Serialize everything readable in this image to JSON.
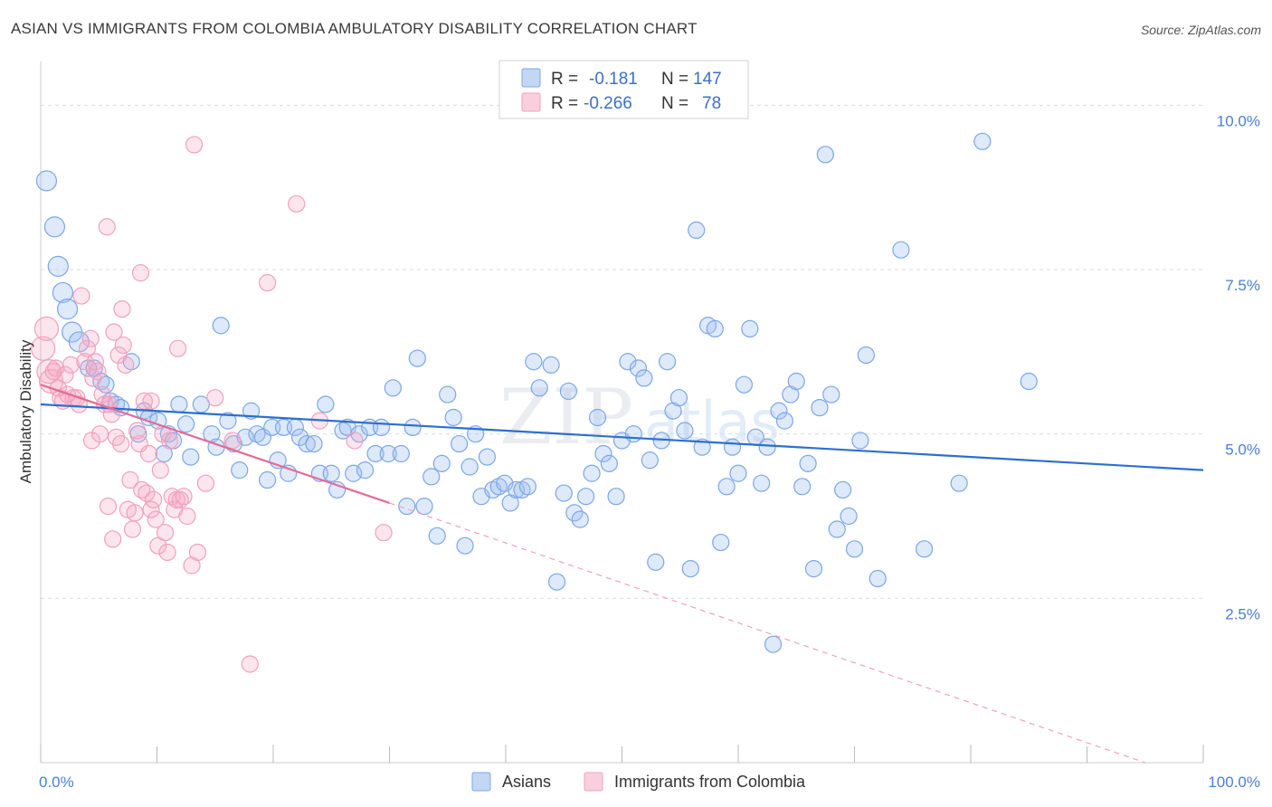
{
  "header": {
    "title": "ASIAN VS IMMIGRANTS FROM COLOMBIA AMBULATORY DISABILITY CORRELATION CHART",
    "source": "Source: ZipAtlas.com"
  },
  "watermark": {
    "zip": "ZIP",
    "atlas": "atlas"
  },
  "legend": {
    "rows": [
      {
        "r_label": "R =",
        "r_value": "-0.181",
        "n_label": "N =",
        "n_value": "147",
        "color": "#7ba7e8"
      },
      {
        "r_label": "R =",
        "r_value": "-0.266",
        "n_label": "N =",
        "n_value": "78",
        "color": "#f2a0bc"
      }
    ]
  },
  "bottom_legend": [
    {
      "label": "Asians",
      "color": "#7ba7e8"
    },
    {
      "label": "Immigrants from Colombia",
      "color": "#f2a0bc"
    }
  ],
  "chart_data": {
    "type": "scatter",
    "title": "ASIAN VS IMMIGRANTS FROM COLOMBIA AMBULATORY DISABILITY CORRELATION CHART",
    "ylabel": "Ambulatory Disability",
    "xlabel": "",
    "xlim": [
      0,
      100
    ],
    "ylim": [
      0,
      10.5
    ],
    "x_tick_labels": [
      "0.0%",
      "100.0%"
    ],
    "y_ticks": [
      2.5,
      5.0,
      7.5,
      10.0
    ],
    "y_tick_labels": [
      "2.5%",
      "5.0%",
      "7.5%",
      "10.0%"
    ],
    "grid": true,
    "legend_position": "top-center",
    "series": [
      {
        "name": "Asians",
        "color": "#7ba7e8",
        "trend": {
          "x": [
            0,
            100
          ],
          "y": [
            5.45,
            4.45
          ],
          "color": "#2b6fcf"
        },
        "points": [
          [
            0.5,
            8.85
          ],
          [
            1.2,
            8.15
          ],
          [
            1.5,
            7.55
          ],
          [
            1.9,
            7.15
          ],
          [
            2.3,
            6.9
          ],
          [
            2.7,
            6.55
          ],
          [
            3.3,
            6.4
          ],
          [
            4.1,
            6.0
          ],
          [
            4.6,
            6.0
          ],
          [
            5.2,
            5.8
          ],
          [
            5.6,
            5.75
          ],
          [
            6.0,
            5.5
          ],
          [
            6.5,
            5.45
          ],
          [
            6.9,
            5.4
          ],
          [
            7.8,
            6.1
          ],
          [
            8.4,
            5.0
          ],
          [
            8.9,
            5.35
          ],
          [
            9.3,
            5.25
          ],
          [
            10.1,
            5.2
          ],
          [
            10.6,
            4.7
          ],
          [
            11.0,
            5.0
          ],
          [
            11.4,
            4.9
          ],
          [
            11.9,
            5.45
          ],
          [
            12.5,
            5.15
          ],
          [
            12.9,
            4.65
          ],
          [
            13.8,
            5.45
          ],
          [
            14.7,
            5.0
          ],
          [
            15.1,
            4.8
          ],
          [
            15.5,
            6.65
          ],
          [
            16.1,
            5.2
          ],
          [
            16.6,
            4.85
          ],
          [
            17.1,
            4.45
          ],
          [
            17.6,
            4.95
          ],
          [
            18.1,
            5.35
          ],
          [
            18.6,
            5.0
          ],
          [
            19.1,
            4.95
          ],
          [
            19.5,
            4.3
          ],
          [
            19.9,
            5.1
          ],
          [
            20.4,
            4.6
          ],
          [
            20.9,
            5.1
          ],
          [
            21.3,
            4.4
          ],
          [
            21.9,
            5.1
          ],
          [
            22.3,
            4.95
          ],
          [
            22.9,
            4.85
          ],
          [
            23.5,
            4.85
          ],
          [
            24.0,
            4.4
          ],
          [
            24.5,
            5.45
          ],
          [
            25.0,
            4.4
          ],
          [
            25.5,
            4.15
          ],
          [
            26.0,
            5.05
          ],
          [
            26.4,
            5.1
          ],
          [
            26.9,
            4.4
          ],
          [
            27.4,
            5.0
          ],
          [
            27.9,
            4.45
          ],
          [
            28.3,
            5.1
          ],
          [
            28.8,
            4.7
          ],
          [
            29.3,
            5.1
          ],
          [
            29.9,
            4.7
          ],
          [
            30.3,
            5.7
          ],
          [
            31.0,
            4.7
          ],
          [
            31.5,
            3.9
          ],
          [
            32.0,
            5.1
          ],
          [
            32.4,
            6.15
          ],
          [
            33.0,
            3.9
          ],
          [
            33.6,
            4.35
          ],
          [
            34.1,
            3.45
          ],
          [
            34.5,
            4.55
          ],
          [
            35.0,
            5.6
          ],
          [
            35.5,
            5.25
          ],
          [
            36.0,
            4.85
          ],
          [
            36.5,
            3.3
          ],
          [
            36.9,
            4.5
          ],
          [
            37.4,
            5.0
          ],
          [
            37.9,
            4.05
          ],
          [
            38.4,
            4.65
          ],
          [
            38.9,
            4.15
          ],
          [
            39.4,
            4.2
          ],
          [
            39.9,
            4.25
          ],
          [
            40.4,
            3.95
          ],
          [
            40.9,
            4.15
          ],
          [
            41.4,
            4.15
          ],
          [
            41.9,
            4.2
          ],
          [
            42.4,
            6.1
          ],
          [
            42.9,
            5.7
          ],
          [
            43.9,
            6.05
          ],
          [
            44.4,
            2.75
          ],
          [
            45.0,
            4.1
          ],
          [
            45.4,
            5.65
          ],
          [
            45.9,
            3.8
          ],
          [
            46.4,
            3.7
          ],
          [
            46.9,
            4.05
          ],
          [
            47.4,
            4.4
          ],
          [
            47.9,
            5.25
          ],
          [
            48.4,
            4.7
          ],
          [
            48.9,
            4.55
          ],
          [
            49.5,
            4.05
          ],
          [
            50.0,
            4.9
          ],
          [
            50.5,
            6.1
          ],
          [
            51.0,
            5.0
          ],
          [
            51.4,
            6.0
          ],
          [
            51.9,
            5.85
          ],
          [
            52.4,
            4.6
          ],
          [
            52.9,
            3.05
          ],
          [
            53.4,
            4.9
          ],
          [
            53.9,
            6.1
          ],
          [
            54.4,
            5.35
          ],
          [
            54.9,
            5.55
          ],
          [
            55.4,
            5.05
          ],
          [
            55.9,
            2.95
          ],
          [
            56.4,
            8.1
          ],
          [
            56.9,
            4.8
          ],
          [
            57.4,
            6.65
          ],
          [
            58.0,
            6.6
          ],
          [
            58.5,
            3.35
          ],
          [
            59.0,
            4.2
          ],
          [
            59.5,
            4.8
          ],
          [
            60.0,
            4.4
          ],
          [
            60.5,
            5.75
          ],
          [
            61.0,
            6.6
          ],
          [
            61.5,
            4.95
          ],
          [
            62.0,
            4.25
          ],
          [
            62.5,
            4.8
          ],
          [
            63.0,
            1.8
          ],
          [
            63.5,
            5.35
          ],
          [
            64.0,
            5.2
          ],
          [
            64.5,
            5.6
          ],
          [
            65.0,
            5.8
          ],
          [
            65.5,
            4.2
          ],
          [
            66.0,
            4.55
          ],
          [
            66.5,
            2.95
          ],
          [
            67.0,
            5.4
          ],
          [
            67.5,
            9.25
          ],
          [
            68.0,
            5.6
          ],
          [
            68.5,
            3.55
          ],
          [
            69.0,
            4.15
          ],
          [
            69.5,
            3.75
          ],
          [
            70.0,
            3.25
          ],
          [
            70.5,
            4.9
          ],
          [
            71.0,
            6.2
          ],
          [
            72.0,
            2.8
          ],
          [
            74.0,
            7.8
          ],
          [
            76.0,
            3.25
          ],
          [
            79.0,
            4.25
          ],
          [
            81.0,
            9.45
          ],
          [
            85.0,
            5.8
          ]
        ]
      },
      {
        "name": "Immigrants from Colombia",
        "color": "#f2a0bc",
        "trend": {
          "x": [
            0,
            30
          ],
          "y": [
            5.75,
            3.95
          ],
          "color": "#e56b94"
        },
        "trend_dashed": {
          "x": [
            30,
            95
          ],
          "y": [
            3.95,
            0.0
          ]
        },
        "points": [
          [
            0.2,
            6.3
          ],
          [
            0.5,
            6.6
          ],
          [
            0.7,
            5.95
          ],
          [
            0.9,
            5.8
          ],
          [
            1.1,
            5.95
          ],
          [
            1.3,
            6.0
          ],
          [
            1.5,
            5.7
          ],
          [
            1.7,
            5.55
          ],
          [
            1.9,
            5.5
          ],
          [
            2.1,
            5.9
          ],
          [
            2.3,
            5.6
          ],
          [
            2.6,
            6.05
          ],
          [
            2.8,
            5.55
          ],
          [
            3.1,
            5.55
          ],
          [
            3.3,
            5.45
          ],
          [
            3.5,
            7.1
          ],
          [
            3.8,
            6.1
          ],
          [
            4.0,
            6.3
          ],
          [
            4.3,
            6.45
          ],
          [
            4.5,
            5.85
          ],
          [
            4.7,
            6.1
          ],
          [
            4.9,
            5.95
          ],
          [
            5.1,
            5.0
          ],
          [
            5.3,
            5.6
          ],
          [
            5.5,
            5.45
          ],
          [
            5.7,
            8.15
          ],
          [
            5.9,
            5.45
          ],
          [
            6.1,
            5.3
          ],
          [
            6.3,
            6.55
          ],
          [
            6.5,
            4.95
          ],
          [
            6.7,
            6.2
          ],
          [
            6.9,
            4.85
          ],
          [
            7.1,
            6.35
          ],
          [
            7.3,
            6.05
          ],
          [
            7.5,
            3.85
          ],
          [
            7.7,
            4.3
          ],
          [
            7.9,
            3.55
          ],
          [
            8.1,
            3.8
          ],
          [
            8.3,
            5.05
          ],
          [
            8.5,
            4.85
          ],
          [
            8.7,
            4.15
          ],
          [
            8.9,
            5.5
          ],
          [
            9.1,
            4.1
          ],
          [
            9.3,
            4.7
          ],
          [
            9.5,
            3.85
          ],
          [
            9.7,
            4.0
          ],
          [
            9.9,
            3.7
          ],
          [
            10.1,
            3.3
          ],
          [
            10.3,
            4.45
          ],
          [
            10.5,
            5.0
          ],
          [
            10.7,
            3.5
          ],
          [
            10.9,
            3.2
          ],
          [
            11.1,
            4.9
          ],
          [
            11.3,
            4.05
          ],
          [
            11.5,
            3.85
          ],
          [
            11.7,
            4.0
          ],
          [
            12.0,
            4.0
          ],
          [
            12.3,
            4.05
          ],
          [
            12.6,
            3.75
          ],
          [
            13.0,
            3.0
          ],
          [
            13.5,
            3.2
          ],
          [
            14.2,
            4.25
          ],
          [
            15.0,
            5.55
          ],
          [
            16.5,
            4.9
          ],
          [
            18.0,
            1.5
          ],
          [
            19.5,
            7.3
          ],
          [
            22.0,
            8.5
          ],
          [
            24.0,
            5.2
          ],
          [
            27.0,
            4.9
          ],
          [
            29.5,
            3.5
          ],
          [
            13.2,
            9.4
          ],
          [
            6.2,
            3.4
          ],
          [
            5.8,
            3.9
          ],
          [
            4.4,
            4.9
          ],
          [
            7.0,
            6.9
          ],
          [
            8.6,
            7.45
          ],
          [
            11.8,
            6.3
          ],
          [
            9.5,
            5.5
          ]
        ]
      }
    ]
  }
}
